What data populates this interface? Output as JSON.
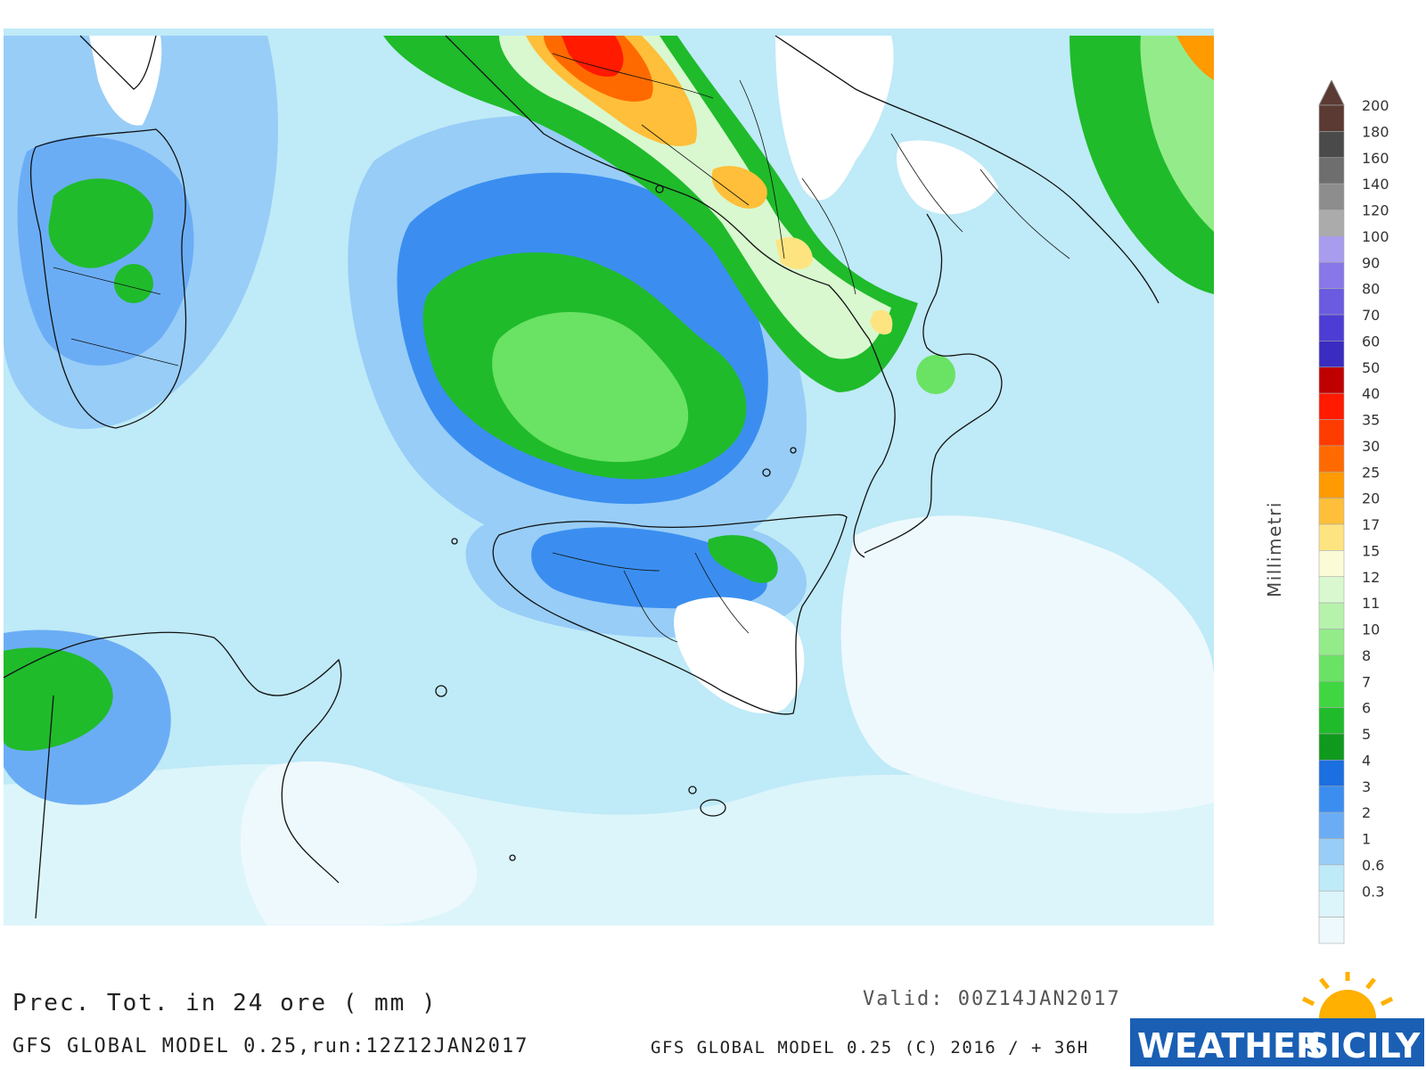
{
  "map": {
    "title": "Prec. Tot. in 24 ore ( mm )",
    "run": "GFS GLOBAL MODEL 0.25,run:12Z12JAN2017",
    "valid": "Valid: 00Z14JAN2017",
    "credit": "GFS GLOBAL MODEL 0.25 (C) 2016 / + 36H",
    "unit_label": "Millimetri",
    "logo": {
      "word1": "WEATHER",
      "word2": "SICILY"
    },
    "colors": {
      "background_sea": "#bfeaf7",
      "land_white": "#ffffff",
      "coast": "#111111"
    }
  },
  "legend": {
    "levels": [
      {
        "label": "200",
        "color": "#5a3a32"
      },
      {
        "label": "180",
        "color": "#4a4a4a"
      },
      {
        "label": "160",
        "color": "#6e6e6e"
      },
      {
        "label": "140",
        "color": "#8d8d8d"
      },
      {
        "label": "120",
        "color": "#ababab"
      },
      {
        "label": "100",
        "color": "#a89cef"
      },
      {
        "label": "90",
        "color": "#8877e8"
      },
      {
        "label": "80",
        "color": "#6a5be0"
      },
      {
        "label": "70",
        "color": "#4e3dd4"
      },
      {
        "label": "60",
        "color": "#3a2cc0"
      },
      {
        "label": "50",
        "color": "#c00000"
      },
      {
        "label": "40",
        "color": "#ff1a00"
      },
      {
        "label": "35",
        "color": "#ff3c00"
      },
      {
        "label": "30",
        "color": "#ff6a00"
      },
      {
        "label": "25",
        "color": "#ff9a00"
      },
      {
        "label": "20",
        "color": "#ffbf3a"
      },
      {
        "label": "17",
        "color": "#fee481"
      },
      {
        "label": "15",
        "color": "#fbfbd8"
      },
      {
        "label": "12",
        "color": "#d9f8cf"
      },
      {
        "label": "11",
        "color": "#b7f2ad"
      },
      {
        "label": "10",
        "color": "#93ec89"
      },
      {
        "label": "8",
        "color": "#6ae264"
      },
      {
        "label": "7",
        "color": "#3fd642"
      },
      {
        "label": "6",
        "color": "#1fbb2b"
      },
      {
        "label": "5",
        "color": "#109a1d"
      },
      {
        "label": "4",
        "color": "#1c6fe0"
      },
      {
        "label": "3",
        "color": "#3b8ef0"
      },
      {
        "label": "2",
        "color": "#6badf5"
      },
      {
        "label": "1",
        "color": "#97cdf7"
      },
      {
        "label": "0.6",
        "color": "#bfeaf7"
      },
      {
        "label": "0.3",
        "color": "#dcf5fb"
      },
      {
        "label": "",
        "color": "#eef9fd"
      }
    ]
  }
}
